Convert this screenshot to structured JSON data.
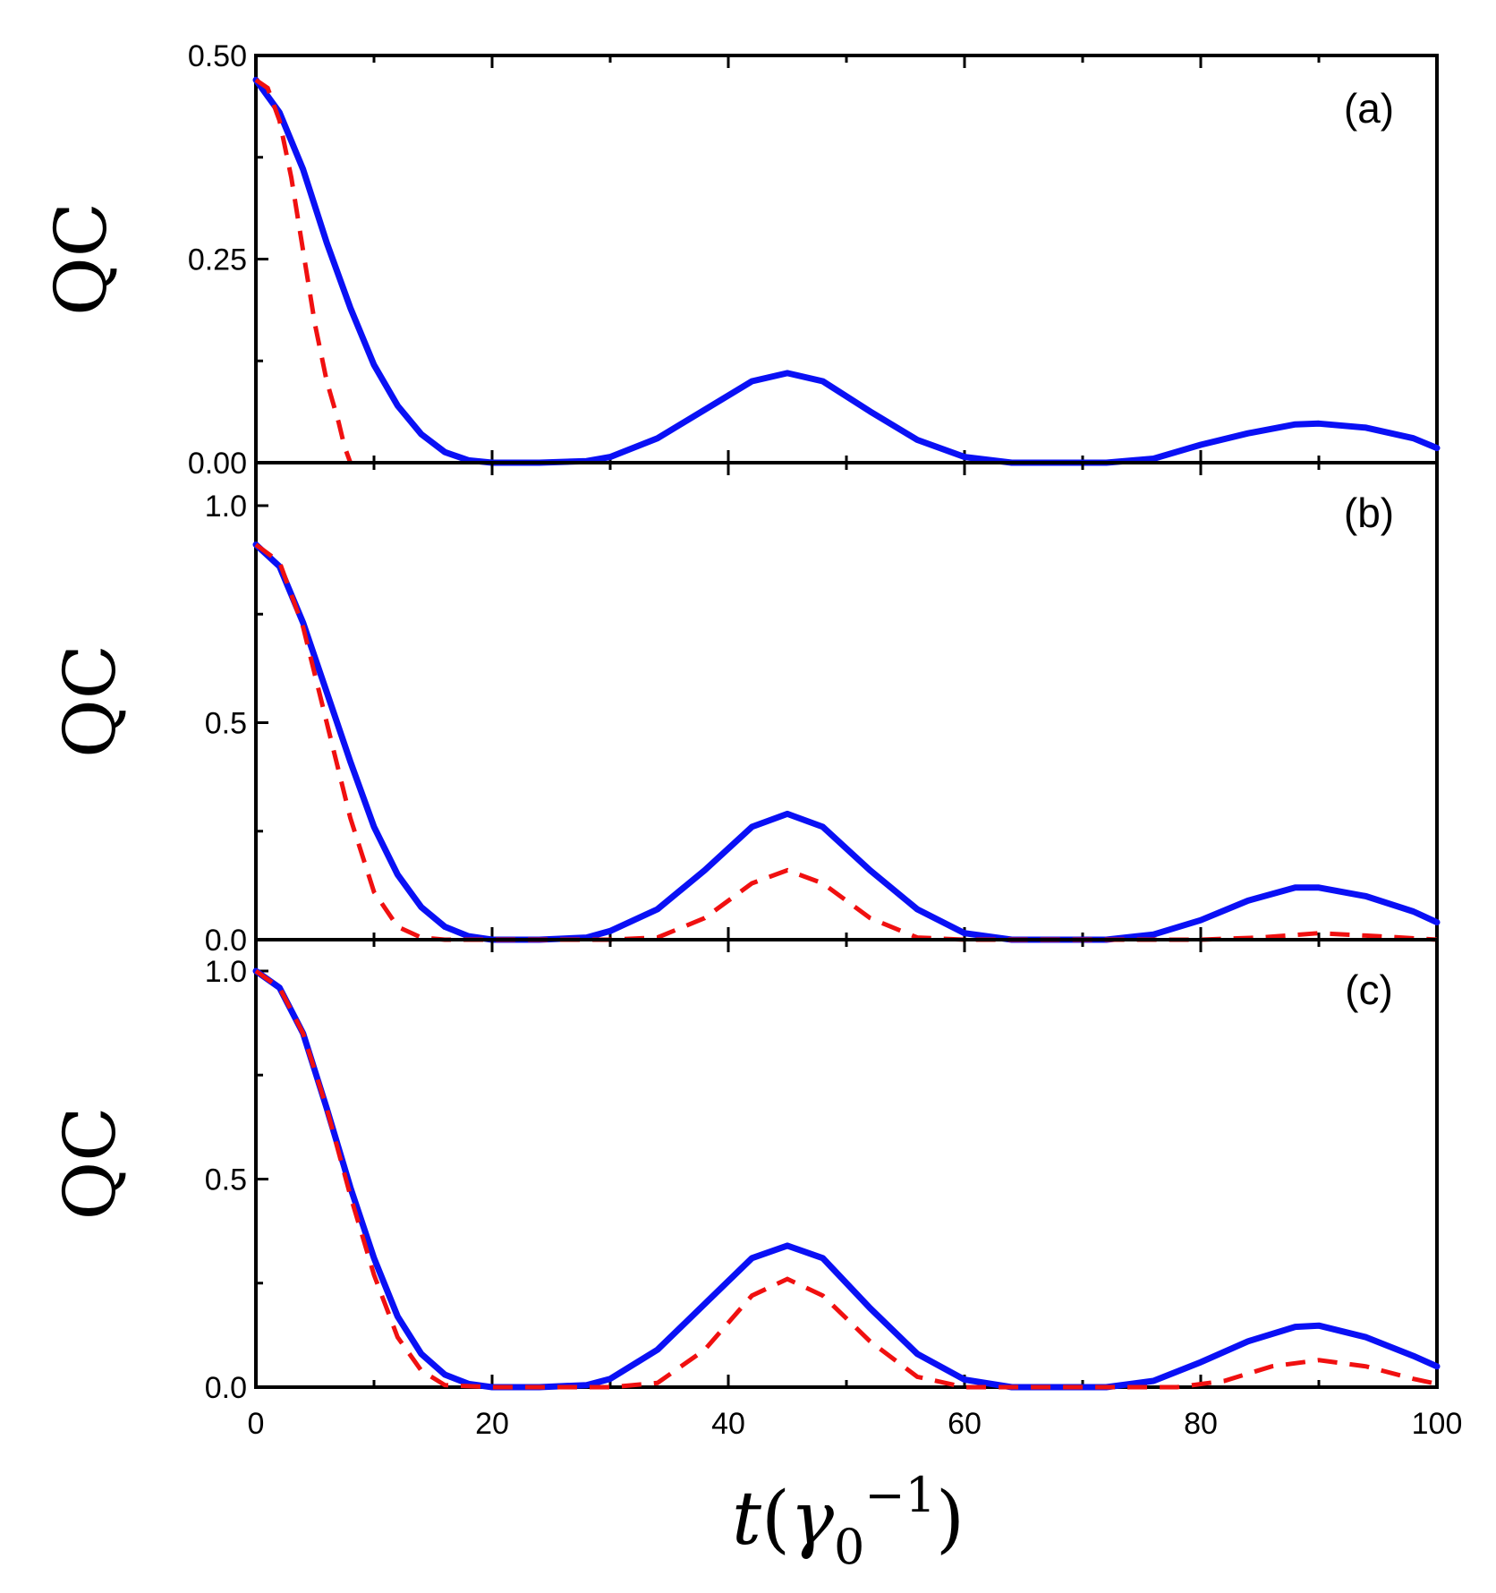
{
  "chart_data": [
    {
      "type": "line",
      "panel": "(a)",
      "ylabel": "QC",
      "xlim": [
        0,
        100
      ],
      "ylim": [
        0,
        0.5
      ],
      "yticks": [
        "0.00",
        "0.25",
        "0.50"
      ],
      "series": [
        {
          "name": "solid",
          "color": "#0a10f5",
          "style": "solid",
          "x": [
            0,
            2,
            4,
            6,
            8,
            10,
            12,
            14,
            16,
            18,
            20,
            24,
            28,
            30,
            34,
            38,
            42,
            45,
            48,
            52,
            56,
            60,
            64,
            68,
            72,
            76,
            80,
            84,
            88,
            90,
            94,
            98,
            100
          ],
          "y": [
            0.47,
            0.43,
            0.36,
            0.27,
            0.19,
            0.12,
            0.07,
            0.035,
            0.013,
            0.003,
            0.0,
            0.0,
            0.002,
            0.007,
            0.03,
            0.065,
            0.1,
            0.11,
            0.1,
            0.063,
            0.028,
            0.007,
            0.0,
            0.0,
            0.0,
            0.005,
            0.022,
            0.036,
            0.047,
            0.048,
            0.043,
            0.03,
            0.018
          ]
        },
        {
          "name": "dashed",
          "color": "#f01010",
          "style": "dashed",
          "x": [
            0,
            1,
            2,
            3,
            4,
            5,
            6,
            7,
            7.5,
            8
          ],
          "y": [
            0.47,
            0.46,
            0.42,
            0.35,
            0.26,
            0.17,
            0.1,
            0.05,
            0.02,
            0.0
          ]
        }
      ]
    },
    {
      "type": "line",
      "panel": "(b)",
      "ylabel": "QC",
      "xlim": [
        0,
        100
      ],
      "ylim": [
        0,
        1.0
      ],
      "yticks": [
        "0.0",
        "0.5",
        "1.0"
      ],
      "series": [
        {
          "name": "solid",
          "color": "#0a10f5",
          "style": "solid",
          "x": [
            0,
            2,
            4,
            6,
            8,
            10,
            12,
            14,
            16,
            18,
            20,
            24,
            28,
            30,
            34,
            38,
            42,
            45,
            48,
            52,
            56,
            60,
            64,
            68,
            72,
            76,
            80,
            84,
            88,
            90,
            94,
            98,
            100
          ],
          "y": [
            0.91,
            0.86,
            0.73,
            0.57,
            0.41,
            0.26,
            0.15,
            0.075,
            0.03,
            0.008,
            0.0,
            0.0,
            0.005,
            0.02,
            0.07,
            0.16,
            0.26,
            0.29,
            0.26,
            0.16,
            0.07,
            0.015,
            0.0,
            0.0,
            0.0,
            0.012,
            0.045,
            0.09,
            0.12,
            0.12,
            0.1,
            0.065,
            0.04
          ]
        },
        {
          "name": "dashed",
          "color": "#f01010",
          "style": "dashed",
          "x": [
            0,
            2,
            4,
            6,
            8,
            10,
            12,
            14,
            16,
            20,
            30,
            34,
            38,
            42,
            45,
            48,
            52,
            56,
            60,
            70,
            80,
            85,
            90,
            95,
            100
          ],
          "y": [
            0.91,
            0.87,
            0.72,
            0.5,
            0.28,
            0.11,
            0.03,
            0.005,
            0.0,
            0.0,
            0.0,
            0.005,
            0.05,
            0.13,
            0.16,
            0.13,
            0.05,
            0.005,
            0.0,
            0.0,
            0.0,
            0.005,
            0.015,
            0.008,
            0.0
          ]
        }
      ]
    },
    {
      "type": "line",
      "panel": "(c)",
      "ylabel": "QC",
      "xlabel": "t(γ0−1)",
      "xlim": [
        0,
        100
      ],
      "ylim": [
        0,
        1.0
      ],
      "xticks": [
        "0",
        "20",
        "40",
        "60",
        "80",
        "100"
      ],
      "yticks": [
        "0.0",
        "0.5",
        "1.0"
      ],
      "series": [
        {
          "name": "solid",
          "color": "#0a10f5",
          "style": "solid",
          "x": [
            0,
            2,
            4,
            6,
            8,
            10,
            12,
            14,
            16,
            18,
            20,
            24,
            28,
            30,
            34,
            38,
            42,
            45,
            48,
            52,
            56,
            60,
            64,
            68,
            72,
            76,
            80,
            84,
            88,
            90,
            94,
            98,
            100
          ],
          "y": [
            1.0,
            0.96,
            0.85,
            0.67,
            0.48,
            0.31,
            0.17,
            0.08,
            0.03,
            0.008,
            0.0,
            0.0,
            0.005,
            0.02,
            0.09,
            0.2,
            0.31,
            0.34,
            0.31,
            0.19,
            0.08,
            0.018,
            0.0,
            0.0,
            0.0,
            0.015,
            0.06,
            0.11,
            0.145,
            0.148,
            0.12,
            0.075,
            0.05
          ]
        },
        {
          "name": "dashed",
          "color": "#f01010",
          "style": "dashed",
          "x": [
            0,
            2,
            4,
            6,
            8,
            10,
            12,
            14,
            16,
            20,
            30,
            34,
            38,
            42,
            45,
            48,
            52,
            56,
            60,
            70,
            78,
            82,
            86,
            90,
            94,
            98,
            100
          ],
          "y": [
            1.0,
            0.96,
            0.85,
            0.67,
            0.46,
            0.27,
            0.12,
            0.04,
            0.005,
            0.0,
            0.0,
            0.01,
            0.09,
            0.22,
            0.26,
            0.22,
            0.11,
            0.025,
            0.0,
            0.0,
            0.0,
            0.015,
            0.05,
            0.065,
            0.05,
            0.02,
            0.008
          ]
        }
      ]
    }
  ]
}
